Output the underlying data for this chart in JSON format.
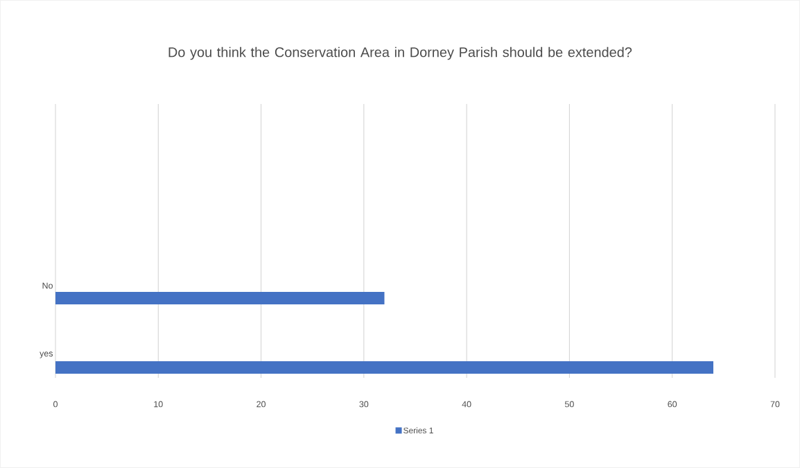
{
  "chart_data": {
    "type": "bar",
    "orientation": "horizontal",
    "title": "Do you think the Conservation Area in Dorney Parish should be extended?",
    "categories": [
      "No",
      "yes"
    ],
    "series": [
      {
        "name": "Series 1",
        "color": "#4472c4",
        "values": [
          32,
          64
        ]
      }
    ],
    "xlim": [
      0,
      70
    ],
    "xticks": [
      0,
      10,
      20,
      30,
      40,
      50,
      60,
      70
    ],
    "grid": "x",
    "legend": "bottom"
  }
}
